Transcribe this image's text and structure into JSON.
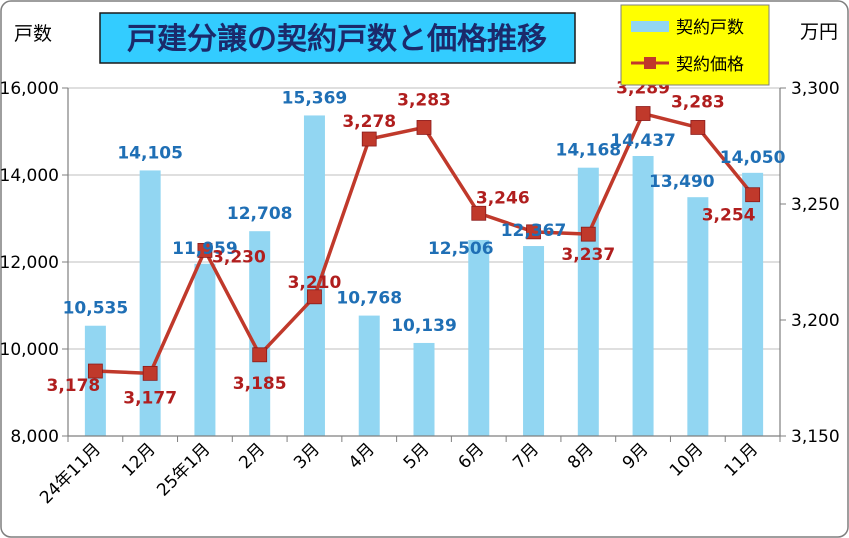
{
  "chart_data": {
    "type": "bar+line",
    "title": "戸建分譲の契約戸数と価格推移",
    "y_left_label": "戸数",
    "y_right_label": "万円",
    "categories": [
      "24年11月",
      "12月",
      "25年1月",
      "2月",
      "3月",
      "4月",
      "5月",
      "6月",
      "7月",
      "8月",
      "9月",
      "10月",
      "11月"
    ],
    "series": [
      {
        "name": "契約戸数",
        "type": "bar",
        "axis": "left",
        "color": "#92D6F2",
        "label_color": "#1F6FB5",
        "values": [
          10535,
          14105,
          11959,
          12708,
          15369,
          10768,
          10139,
          12506,
          12367,
          14168,
          14437,
          13490,
          14050
        ],
        "labels": [
          "10,535",
          "14,105",
          "11,959",
          "12,708",
          "15,369",
          "10,768",
          "10,139",
          "12,506",
          "12,367",
          "14,168",
          "14,437",
          "13,490",
          "14,050"
        ]
      },
      {
        "name": "契約価格",
        "type": "line",
        "axis": "right",
        "color": "#C0392B",
        "label_color": "#B01E1E",
        "values": [
          3178,
          3177,
          3230,
          3185,
          3210,
          3278,
          3283,
          3246,
          3238,
          3237,
          3289,
          3283,
          3254
        ],
        "labels": [
          "3,178",
          "3,177",
          "3,230",
          "3,185",
          "3,210",
          "3,278",
          "3,283",
          "3,246",
          "",
          "3,237",
          "3,289",
          "3,283",
          "3,254"
        ]
      }
    ],
    "y_left": {
      "min": 8000,
      "max": 16000,
      "ticks": [
        "8,000",
        "10,000",
        "12,000",
        "14,000",
        "16,000"
      ]
    },
    "y_right": {
      "min": 3150,
      "max": 3300,
      "ticks": [
        "3,150",
        "3,200",
        "3,250",
        "3,300"
      ]
    },
    "grid": true,
    "legend_position": "top-right",
    "legend_bg": "#FFFF00",
    "title_bg": "#33CCFF"
  }
}
